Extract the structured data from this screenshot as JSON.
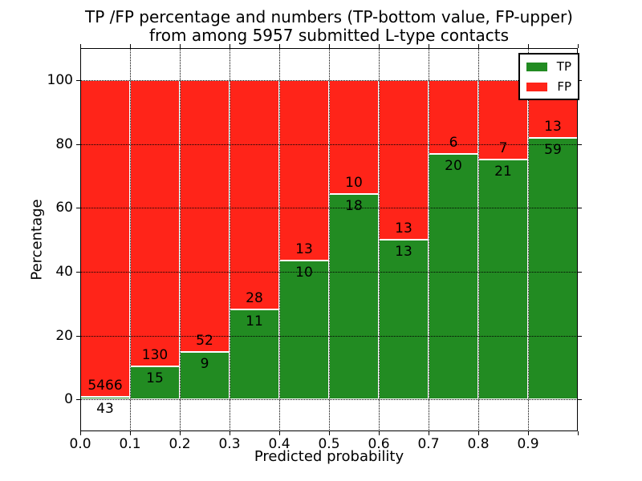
{
  "title": {
    "line1": "TP /FP percentage and numbers (TP-bottom value, FP-upper)",
    "line2": "from among 5957 submitted L-type contacts"
  },
  "legend": {
    "position": "upper right",
    "items": [
      {
        "label": "TP",
        "color": "#228B22"
      },
      {
        "label": "FP",
        "color": "#FF2419"
      }
    ]
  },
  "chart_data": {
    "type": "bar",
    "stacked": true,
    "normalized_to_percent": true,
    "title": "TP /FP percentage and numbers (TP-bottom value, FP-upper) from among 5957 submitted L-type contacts",
    "xlabel": "Predicted probability",
    "ylabel": "Percentage",
    "xlim": [
      0.0,
      1.0
    ],
    "ylim": [
      -10,
      110
    ],
    "grid": true,
    "bin_width": 0.1,
    "bin_start": [
      0.0,
      0.1,
      0.2,
      0.3,
      0.4,
      0.5,
      0.6,
      0.7,
      0.8,
      0.9
    ],
    "x_tick_labels": [
      "0.0",
      "0.1",
      "0.2",
      "0.3",
      "0.4",
      "0.5",
      "0.6",
      "0.7",
      "0.8",
      "0.9"
    ],
    "y_ticks": [
      0,
      20,
      40,
      60,
      80,
      100
    ],
    "y_tick_labels": [
      "0",
      "20",
      "40",
      "60",
      "80",
      "100"
    ],
    "total_contacts": 5957,
    "series": [
      {
        "name": "TP",
        "color": "#228B22",
        "counts": [
          43,
          15,
          9,
          11,
          10,
          18,
          13,
          20,
          21,
          59
        ]
      },
      {
        "name": "FP",
        "color": "#FF2419",
        "counts": [
          5466,
          130,
          52,
          28,
          13,
          10,
          13,
          6,
          7,
          13
        ]
      }
    ]
  }
}
